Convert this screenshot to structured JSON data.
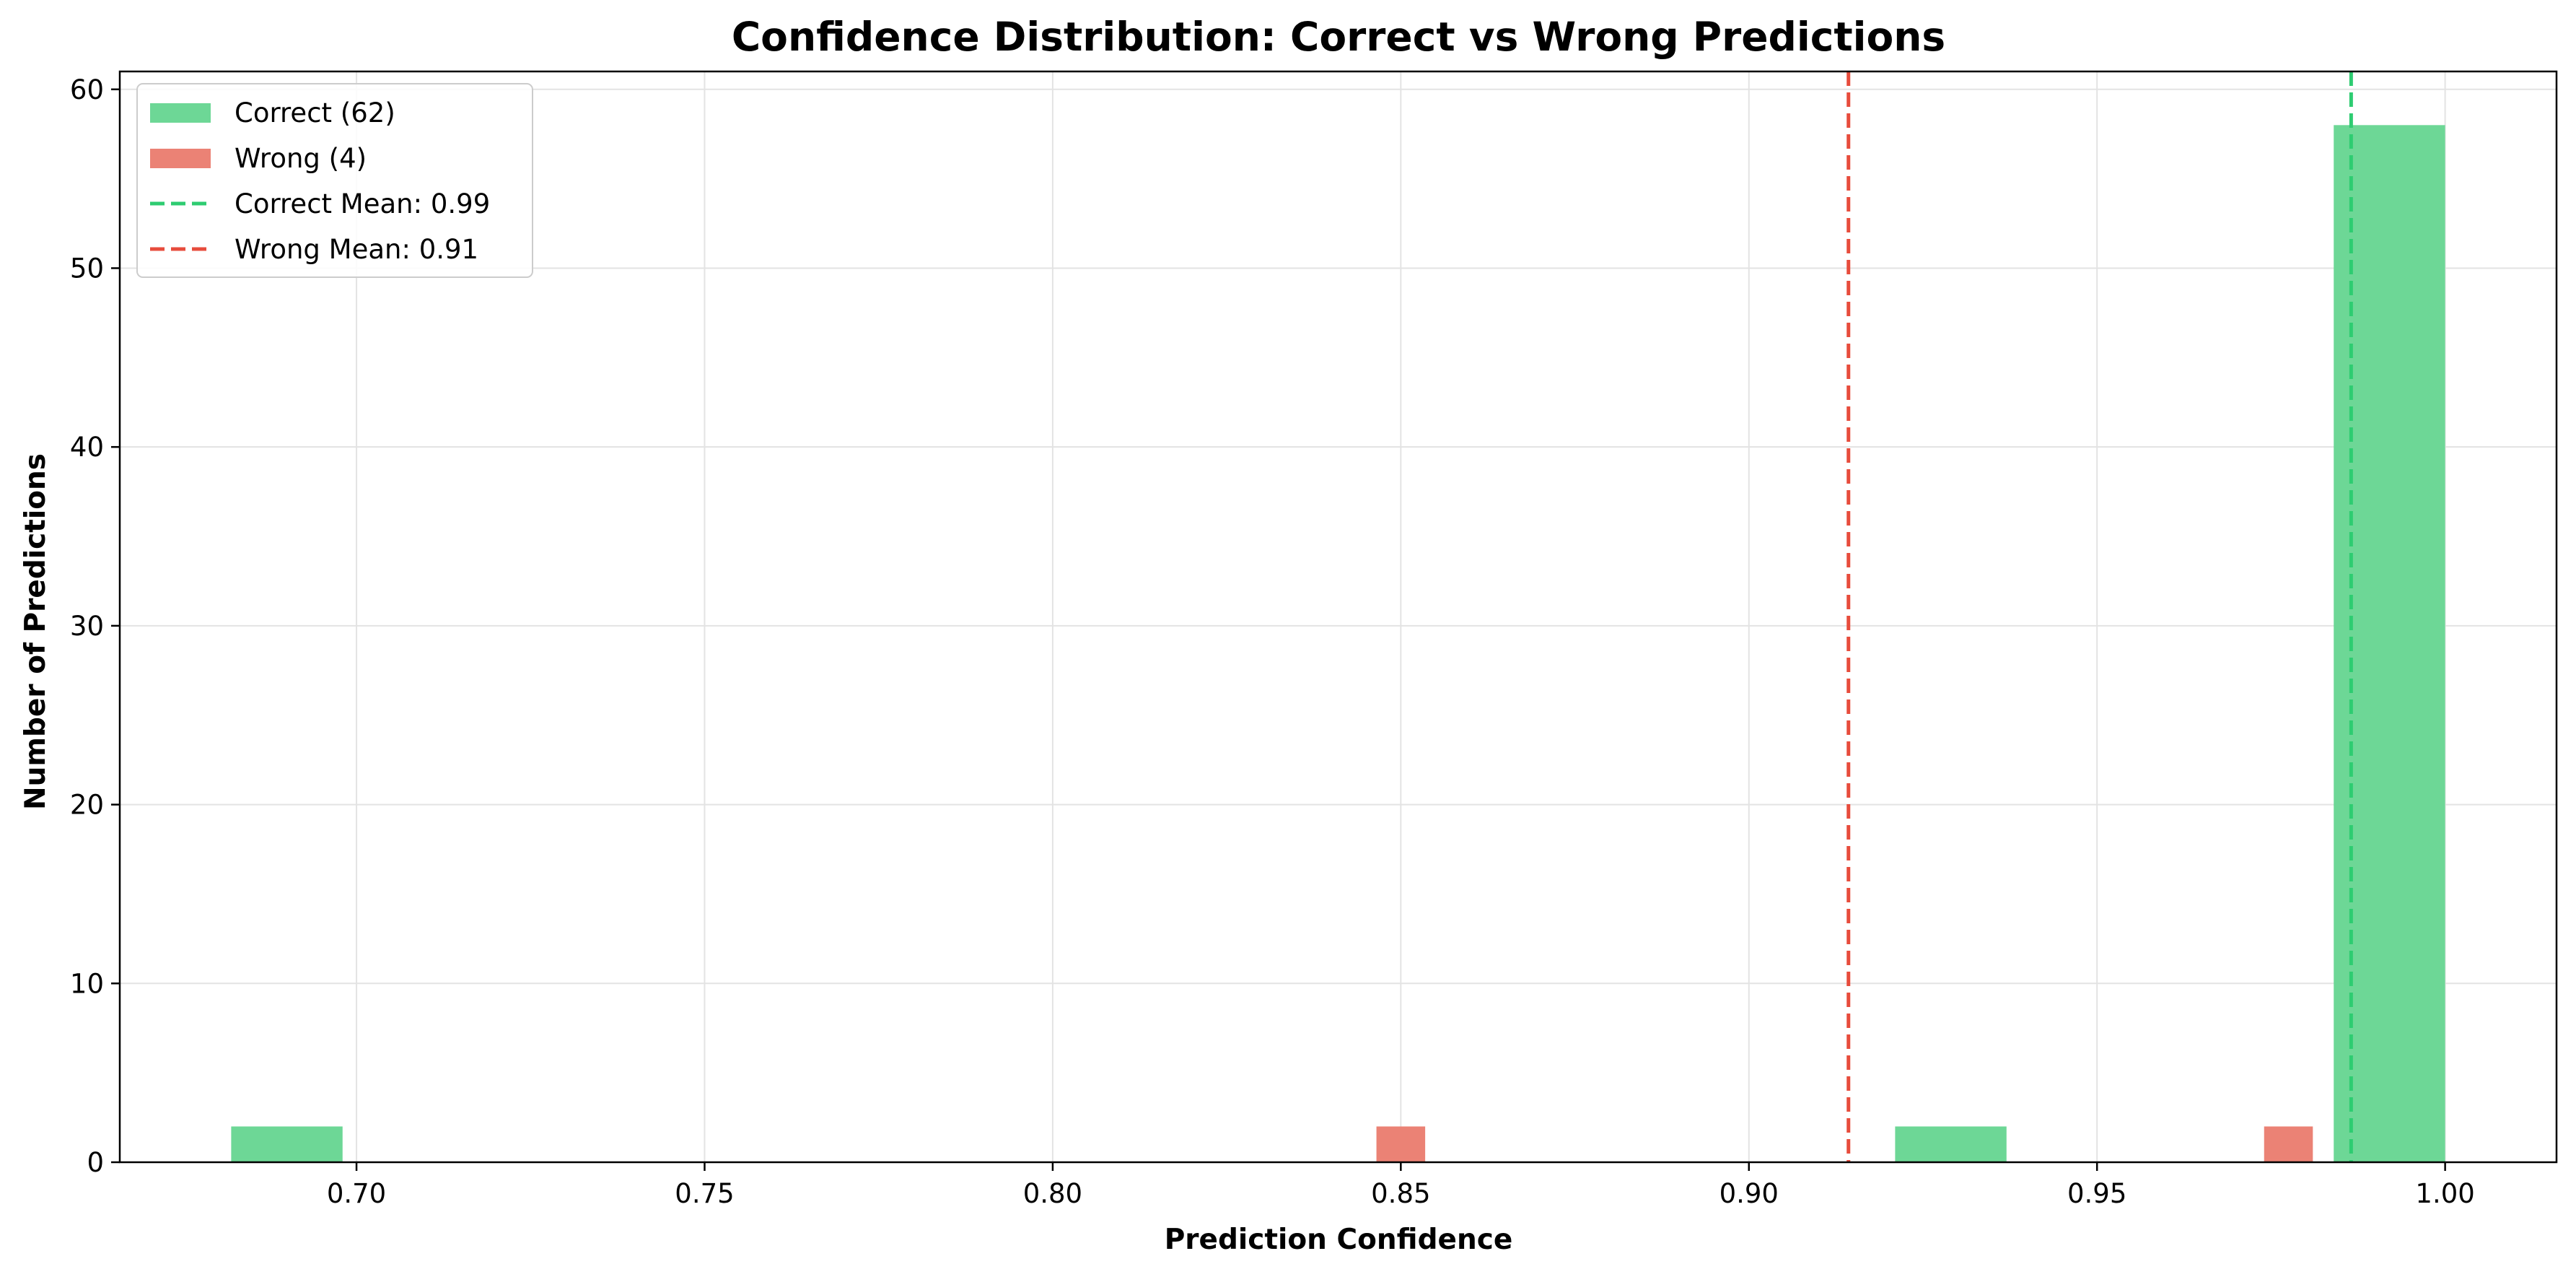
{
  "chart_data": {
    "type": "bar",
    "title": "Confidence Distribution: Correct vs Wrong Predictions",
    "xlabel": "Prediction Confidence",
    "ylabel": "Number of Predictions",
    "xlim": [
      0.666,
      1.016
    ],
    "ylim": [
      0,
      61
    ],
    "xticks": [
      "0.70",
      "0.75",
      "0.80",
      "0.85",
      "0.90",
      "0.95",
      "1.00"
    ],
    "yticks": [
      "0",
      "10",
      "20",
      "30",
      "40",
      "50",
      "60"
    ],
    "grid": true,
    "legend_position": "top-left",
    "series": [
      {
        "name": "Correct (62)",
        "color": "#6dd796",
        "bins": [
          {
            "x0": 0.682,
            "x1": 0.698,
            "count": 2
          },
          {
            "x0": 0.921,
            "x1": 0.937,
            "count": 2
          },
          {
            "x0": 0.984,
            "x1": 1.0,
            "count": 58
          }
        ]
      },
      {
        "name": "Wrong (4)",
        "color": "#eb8275",
        "bins": [
          {
            "x0": 0.8465,
            "x1": 0.8535,
            "count": 2
          },
          {
            "x0": 0.974,
            "x1": 0.981,
            "count": 2
          }
        ]
      }
    ],
    "reference_lines": [
      {
        "name": "Correct Mean: 0.99",
        "x": 0.9865,
        "color": "#2ecc71"
      },
      {
        "name": "Wrong Mean: 0.91",
        "x": 0.9143,
        "color": "#e74c3c"
      }
    ]
  }
}
